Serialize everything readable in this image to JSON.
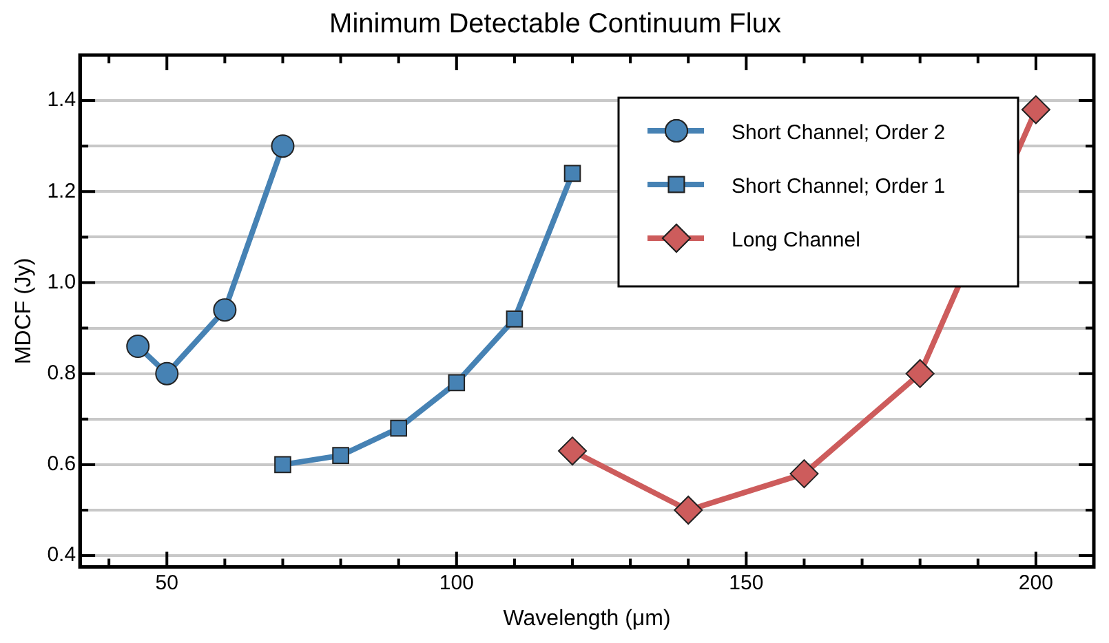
{
  "chart_data": {
    "type": "line",
    "title": "Minimum Detectable Continuum Flux",
    "xlabel": "Wavelength (μm)",
    "ylabel": "MDCF (Jy)",
    "xlim": [
      35,
      210
    ],
    "xticks": [
      {
        "value": 40,
        "label": null
      },
      50,
      {
        "value": 60,
        "label": null
      },
      {
        "value": 70,
        "label": null
      },
      {
        "value": 80,
        "label": null
      },
      {
        "value": 90,
        "label": null
      },
      100,
      {
        "value": 110,
        "label": null
      },
      {
        "value": 120,
        "label": null
      },
      {
        "value": 130,
        "label": null
      },
      {
        "value": 140,
        "label": null
      },
      150,
      {
        "value": 160,
        "label": null
      },
      {
        "value": 170,
        "label": null
      },
      {
        "value": 180,
        "label": null
      },
      {
        "value": 190,
        "label": null
      },
      200
    ],
    "ylim": [
      0.375,
      1.5
    ],
    "yticks": [
      0.4,
      {
        "value": 0.5,
        "label": null
      },
      0.6,
      {
        "value": 0.7,
        "label": null
      },
      0.8,
      {
        "value": 0.9,
        "label": null
      },
      {
        "value": 1,
        "label": "1.0"
      },
      {
        "value": 1.1,
        "label": null
      },
      1.2,
      {
        "value": 1.3,
        "label": null
      },
      1.4
    ],
    "grid": "y",
    "legend": "top right",
    "series": [
      {
        "name": "Short Channel; Order 2",
        "color": "#4682b4",
        "marker": "circle",
        "x": [
          45,
          50,
          60,
          70
        ],
        "values": [
          0.86,
          0.8,
          0.94,
          1.3
        ]
      },
      {
        "name": "Short Channel; Order 1",
        "color": "#4682b4",
        "marker": "square",
        "x": [
          70,
          80,
          90,
          100,
          110,
          120
        ],
        "values": [
          0.6,
          0.62,
          0.68,
          0.78,
          0.92,
          1.24
        ]
      },
      {
        "name": "Long Channel",
        "color": "#cd5c5c",
        "marker": "diamond",
        "x": [
          120,
          140,
          160,
          180,
          200
        ],
        "values": [
          0.63,
          0.5,
          0.58,
          0.8,
          1.38
        ]
      }
    ]
  }
}
